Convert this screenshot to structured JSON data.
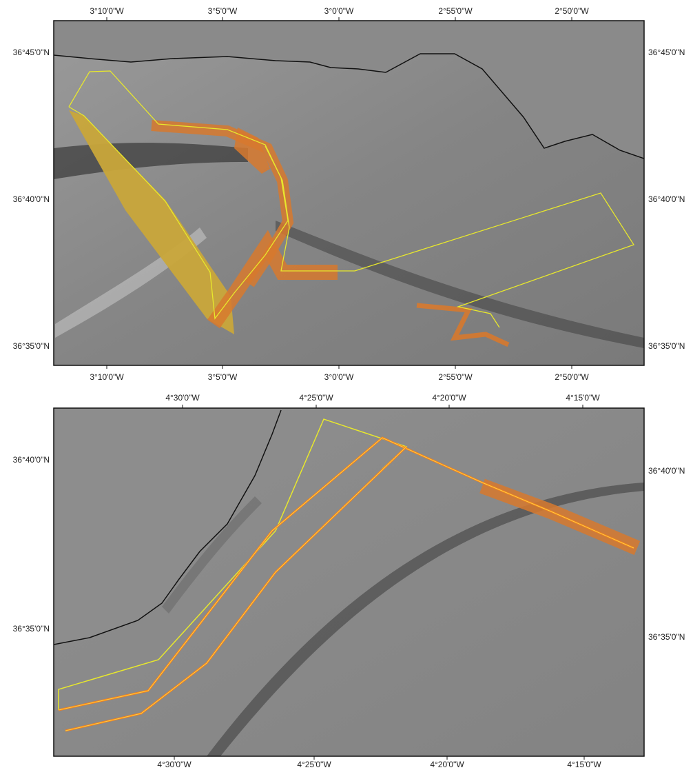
{
  "maps": [
    {
      "top_labels": [
        "3°10'0\"W",
        "3°5'0\"W",
        "3°0'0\"W",
        "2°55'0\"W",
        "2°50'0\"W"
      ],
      "bottom_labels": [
        "3°10'0\"W",
        "3°5'0\"W",
        "3°0'0\"W",
        "2°55'0\"W",
        "2°50'0\"W"
      ],
      "left_labels": [
        "36°45'0\"N",
        "36°40'0\"N",
        "36°35'0\"N"
      ],
      "right_labels": [
        "36°45'0\"N",
        "36°40'0\"N",
        "36°35'0\"N"
      ]
    },
    {
      "top_labels": [
        "4°30'0\"W",
        "4°25'0\"W",
        "4°20'0\"W",
        "4°15'0\"W"
      ],
      "bottom_labels": [
        "4°30'0\"W",
        "4°25'0\"W",
        "4°20'0\"W",
        "4°15'0\"W"
      ],
      "left_labels": [
        "36°40'0\"N",
        "36°35'0\"N"
      ],
      "right_labels": [
        "36°40'0\"N",
        "36°35'0\"N"
      ]
    }
  ]
}
